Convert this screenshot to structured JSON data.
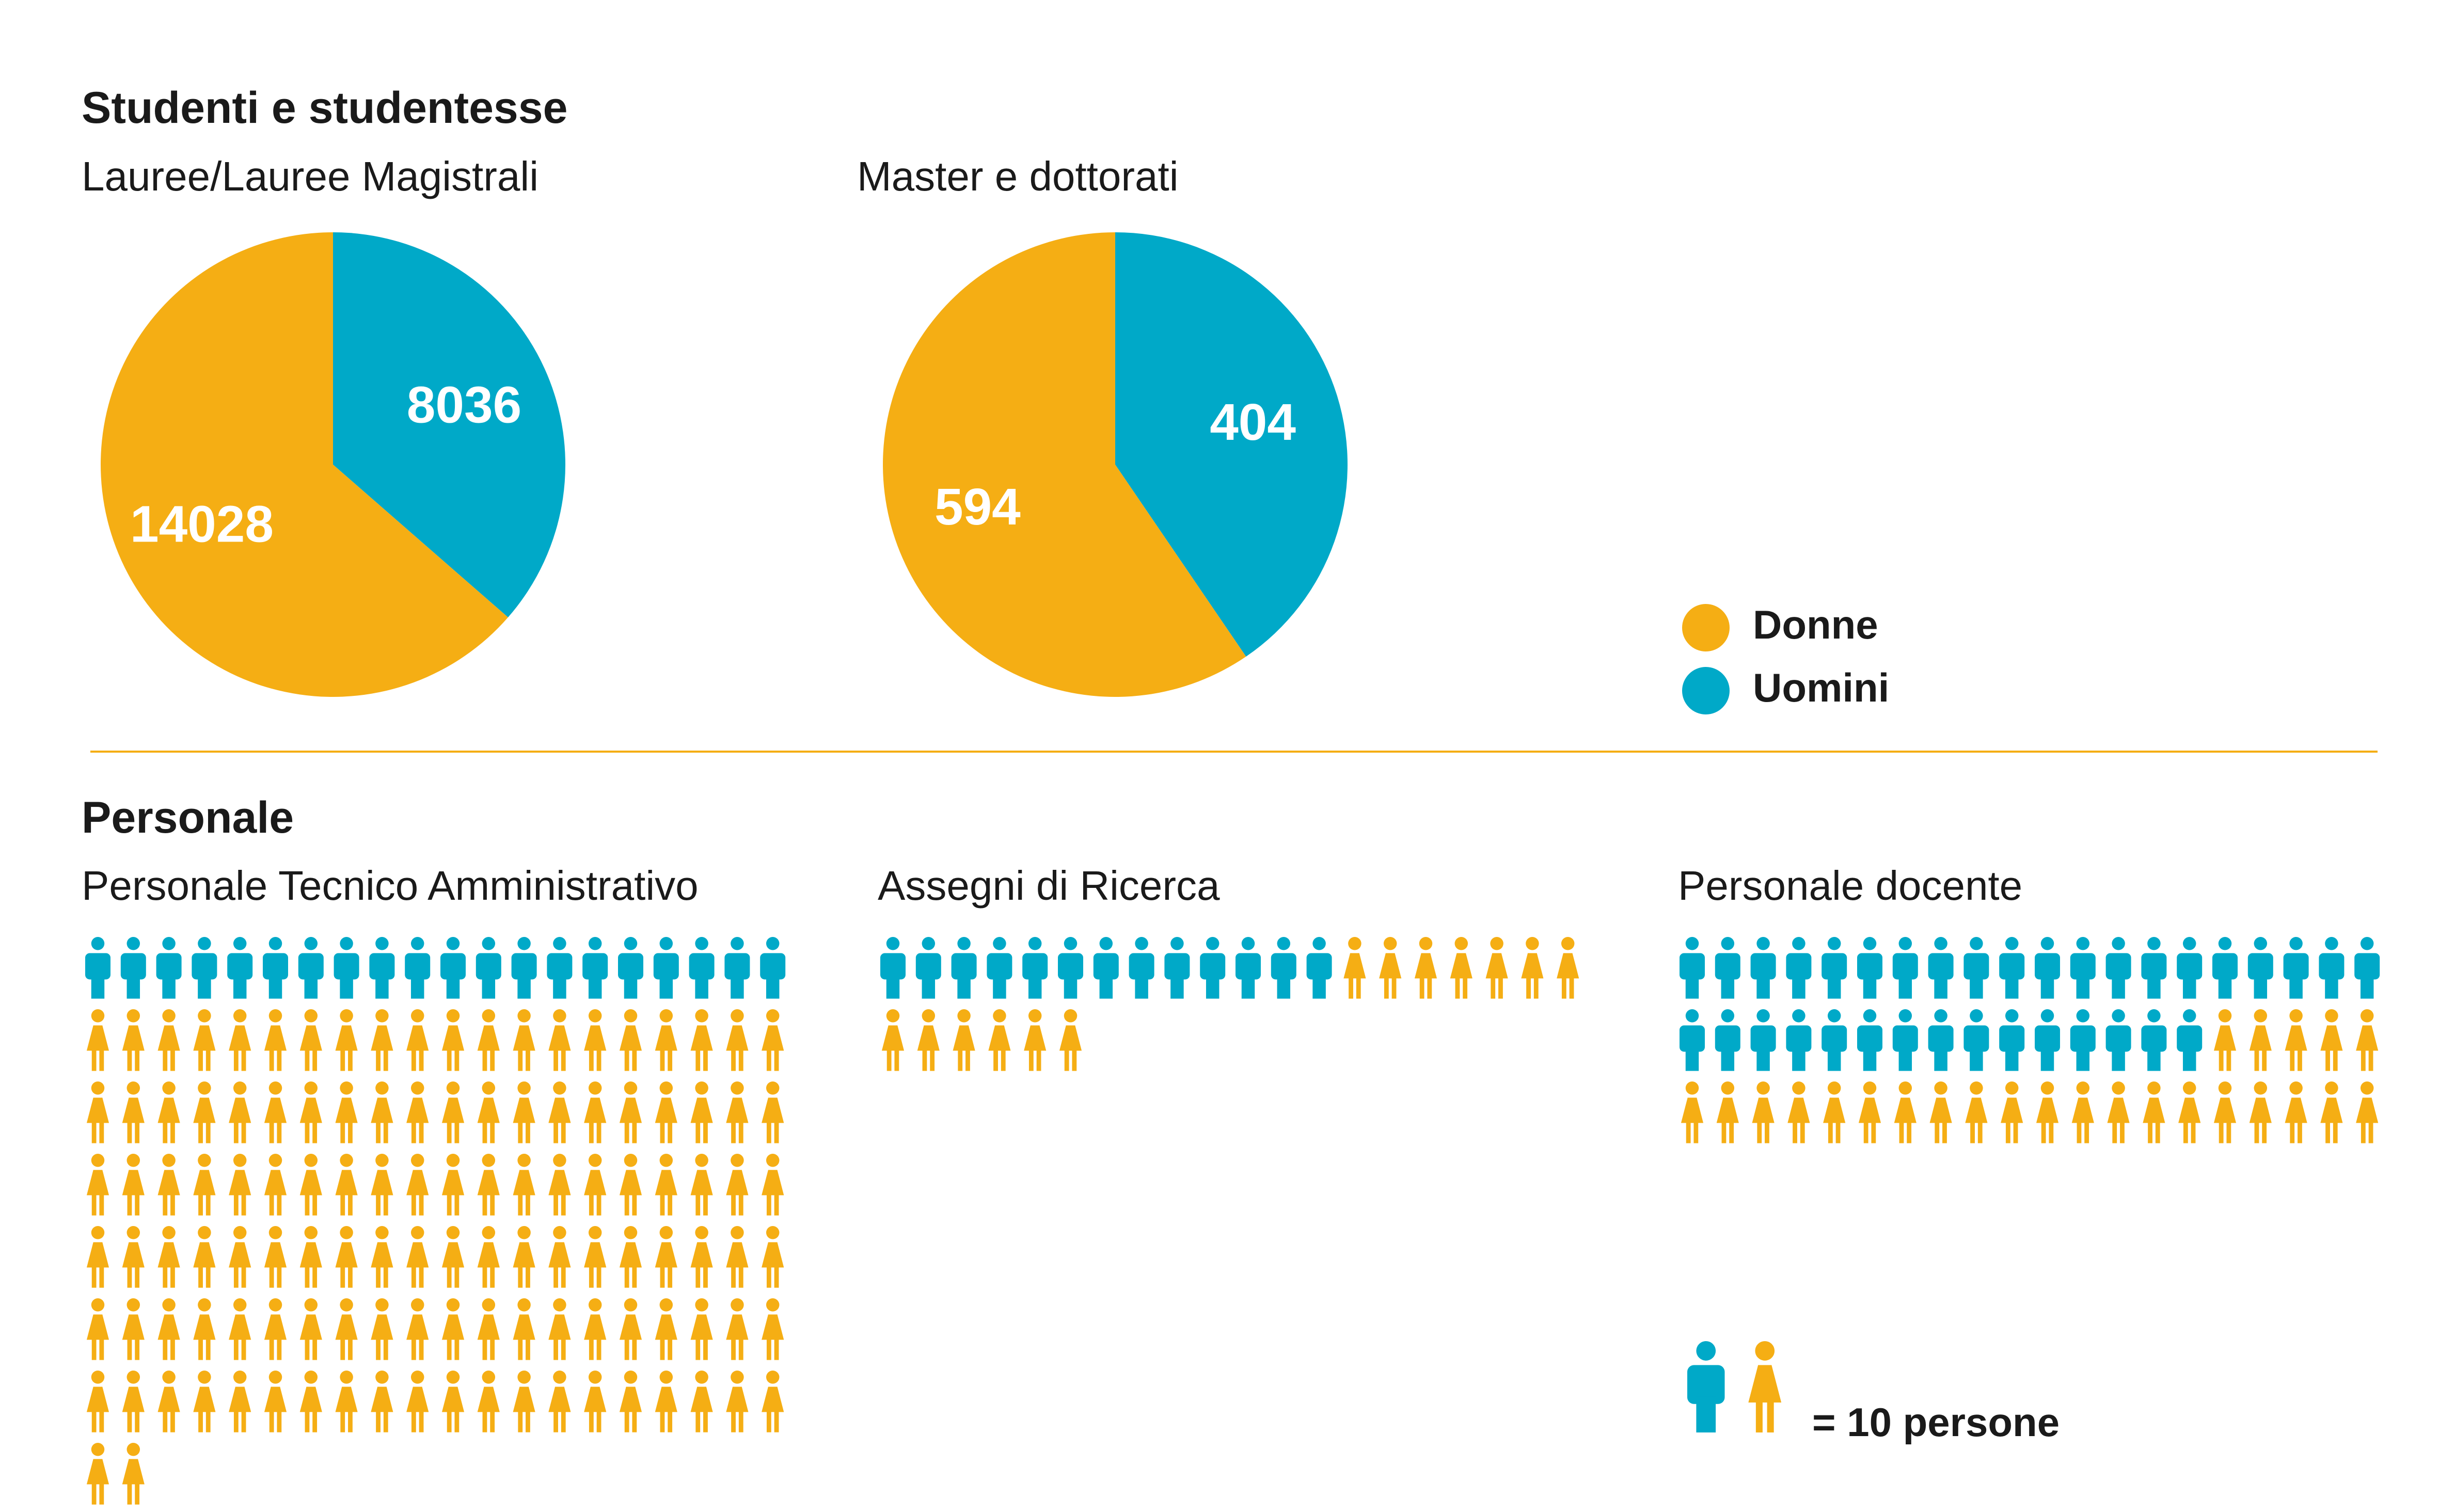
{
  "colors": {
    "women": "#f5ae14",
    "men": "#00a9c8",
    "divider": "#f5ae14"
  },
  "students": {
    "title": "Studenti e studentesse",
    "lauree": {
      "label": "Lauree/Lauree Magistrali"
    },
    "master": {
      "label": "Master e dottorati"
    }
  },
  "legend": {
    "women": "Donne",
    "men": "Uomini"
  },
  "staff": {
    "title": "Personale",
    "pta": {
      "label": "Personale Tecnico Amministrativo"
    },
    "assegni": {
      "label": "Assegni di Ricerca"
    },
    "docenti": {
      "label": "Personale docente"
    },
    "unit_note": "= 10 persone"
  },
  "chart_data": [
    {
      "type": "pie",
      "title": "Lauree/Lauree Magistrali",
      "categories": [
        "Donne",
        "Uomini"
      ],
      "values": [
        14028,
        8036
      ]
    },
    {
      "type": "pie",
      "title": "Master e dottorati",
      "categories": [
        "Donne",
        "Uomini"
      ],
      "values": [
        594,
        404
      ]
    },
    {
      "type": "pictogram",
      "title": "Personale Tecnico Amministrativo",
      "unit": 10,
      "categories": [
        "Uomini",
        "Donne"
      ],
      "icon_counts": [
        20,
        122
      ]
    },
    {
      "type": "pictogram",
      "title": "Assegni di Ricerca",
      "unit": 10,
      "categories": [
        "Uomini",
        "Donne"
      ],
      "icon_counts": [
        13,
        13
      ]
    },
    {
      "type": "pictogram",
      "title": "Personale docente",
      "unit": 10,
      "categories": [
        "Uomini",
        "Donne"
      ],
      "icon_counts": [
        35,
        25
      ]
    }
  ]
}
